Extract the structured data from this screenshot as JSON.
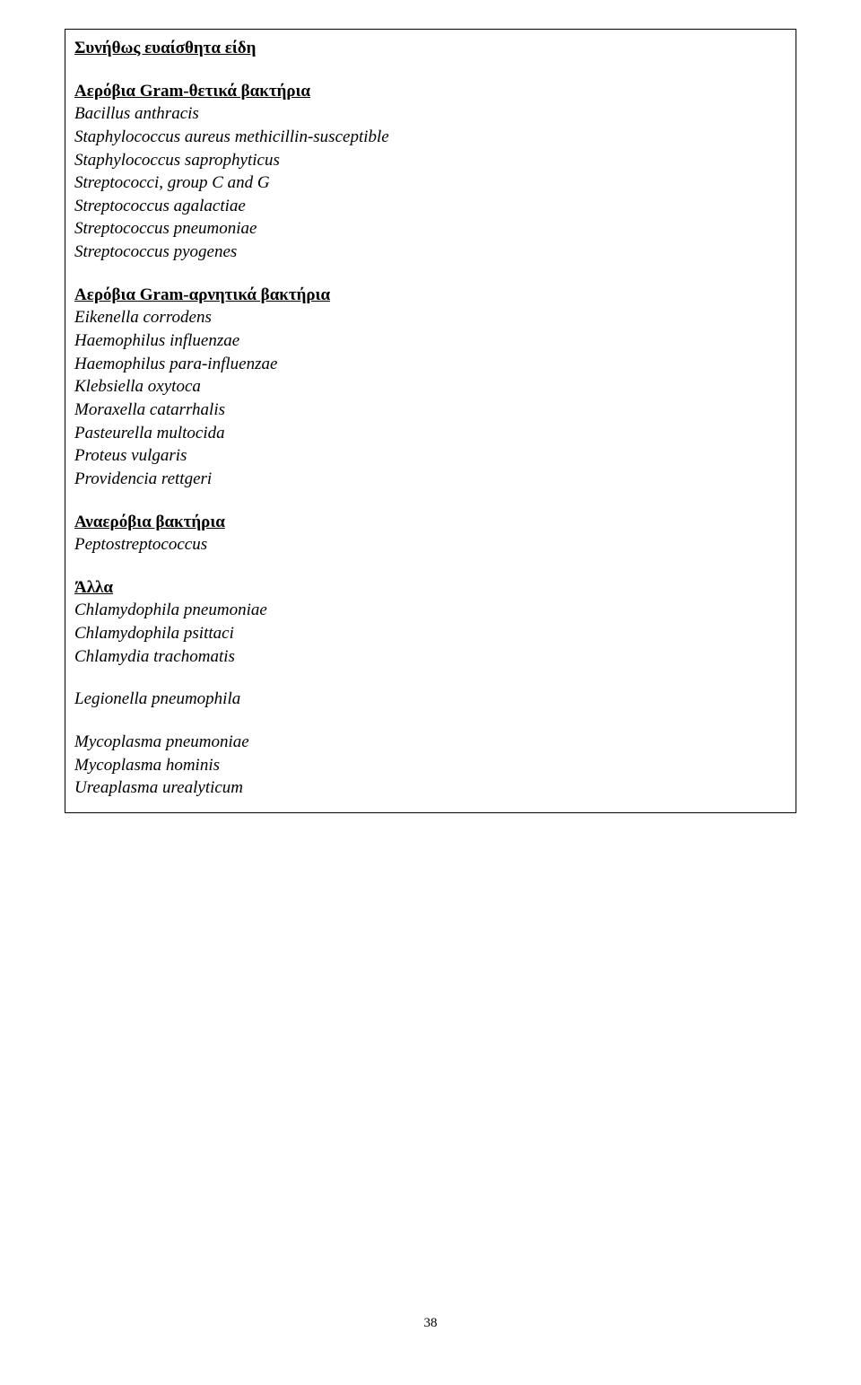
{
  "sections": {
    "main_heading": "Συνήθως ευαίσθητα είδη",
    "group1": {
      "title": "Αερόβια Gram-θετικά βακτήρια",
      "items": [
        "Bacillus anthracis",
        "Staphylococcus aureus methicillin-susceptible",
        "Staphylococcus saprophyticus",
        "Streptococci, group C and G",
        "Streptococcus agalactiae",
        "Streptococcus pneumoniae",
        "Streptococcus pyogenes"
      ]
    },
    "group2": {
      "title": "Αερόβια Gram-αρνητικά βακτήρια",
      "items": [
        "Eikenella corrodens",
        "Haemophilus influenzae",
        "Haemophilus para-influenzae",
        "Klebsiella oxytoca",
        "Moraxella catarrhalis",
        "Pasteurella multocida",
        "Proteus vulgaris",
        "Providencia rettgeri"
      ]
    },
    "group3": {
      "title": "Αναερόβια βακτήρια",
      "items": [
        "Peptostreptococcus"
      ]
    },
    "group4": {
      "title": "Άλλα",
      "items": [
        "Chlamydophila pneumoniae",
        "Chlamydophila psittaci",
        "Chlamydia trachomatis"
      ]
    },
    "group5": {
      "items": [
        "Legionella pneumophila"
      ]
    },
    "group6": {
      "items": [
        "Mycoplasma pneumoniae",
        "Mycoplasma hominis",
        "Ureaplasma urealyticum"
      ]
    }
  },
  "page_number": "38"
}
